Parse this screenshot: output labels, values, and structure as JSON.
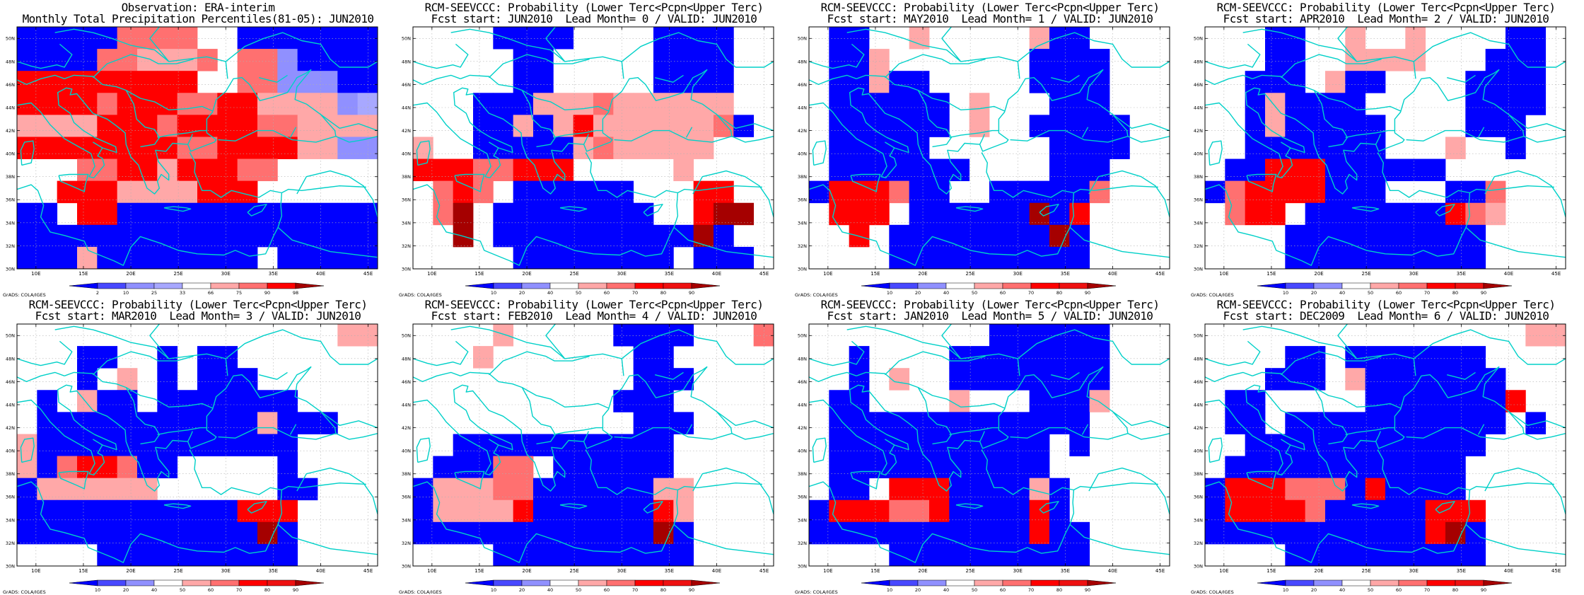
{
  "colors": {
    "blue": "#0000ff",
    "blue_light": "#4848ff",
    "blue_lighter": "#9090ff",
    "blue_pale": "#a8a8ff",
    "white": "#ffffff",
    "red_pale": "#ffa8a8",
    "red_light": "#ff7070",
    "red": "#ff0000",
    "red_mid": "#ee1111",
    "red_dark": "#a50000",
    "coast": "#00d0c8"
  },
  "map": {
    "lon_ticks": [
      "10E",
      "15E",
      "20E",
      "25E",
      "30E",
      "35E",
      "40E",
      "45E"
    ],
    "lat_ticks": [
      "50N",
      "48N",
      "46N",
      "44N",
      "42N",
      "40N",
      "38N",
      "36N",
      "34N",
      "32N",
      "30N"
    ],
    "lon_range": [
      8,
      46
    ],
    "lat_range": [
      30,
      51
    ],
    "grid_step_deg": 2
  },
  "credit": "GrADS: COLA/IGES",
  "panels": [
    {
      "id": "obs",
      "title1": "Observation: ERA-interim",
      "title2": "Monthly Total Precipitation Percentiles(81-05): JUN2010",
      "colorbar": {
        "labels": [
          "2",
          "10",
          "25",
          "33",
          "66",
          "75",
          "90",
          "98"
        ],
        "colors": [
          "#0000ff",
          "#4848ff",
          "#9090ff",
          "#a8a8ff",
          "#ffffff",
          "#ffa8a8",
          "#ff7070",
          "#ff0000",
          "#a50000"
        ]
      },
      "rows": [
        "BBBBBXXXXWWBBBBBBB",
        "BBBBXXPPPXWXXQBBBB",
        "RRRRRRRRRWWXXQQQBB",
        "RRRRXRRRXXRRPPPPQL",
        "PPPPRRRXRRRRXXPPPP",
        "RRRRRRRRXXRRRRPPQQ",
        "WWWXXRRPRRRXXWWWWW",
        "WWRRRPPPPRRRWWWWWW",
        "BBWRRBBBBBBBBBBBBB",
        "BBBBBBBBBBBBBBBBBB",
        "BBBPBBBBBBBBWBBBBB"
      ]
    },
    {
      "id": "lead0",
      "title1": "RCM-SEEVCCC: Probability (Lower Terc<Pcpn<Upper Terc)",
      "title2": "Fcst start: JUN2010  Lead Month= 0 / VALID: JUN2010",
      "colorbar": {
        "labels": [
          "10",
          "20",
          "40",
          "50",
          "60",
          "70",
          "80",
          "90"
        ],
        "colors": [
          "#0000ff",
          "#4848ff",
          "#9090ff",
          "#ffffff",
          "#ffa8a8",
          "#ff7070",
          "#ff0000",
          "#ee1111",
          "#a50000"
        ]
      },
      "rows": [
        "WWWWBBBBWWWWBBBBWW",
        "WWWWWBBWWWWWBBBBWW",
        "WWWWWBBWWWWWBBBBWW",
        "WWWBBBPPPXPPPPPPWW",
        "WWWBBPBPRPPPPPPXBW",
        "PWWBBBBBPXPPPPPWWW",
        "RRRXXRRRWWWWWPWWWW",
        "WXRXWBBBBBBWWWRRWW",
        "WXDWBBBBBBBBWWRDDW",
        "WWDWBBBBBBBBBBDBWW",
        "WWWWWBBBBBBBBWBBBW"
      ]
    },
    {
      "id": "lead1",
      "title1": "RCM-SEEVCCC: Probability (Lower Terc<Pcpn<Upper Terc)",
      "title2": "Fcst start: MAY2010  Lead Month= 1 / VALID: JUN2010",
      "colorbar": {
        "labels": [
          "10",
          "20",
          "40",
          "50",
          "60",
          "70",
          "80",
          "90"
        ],
        "colors": [
          "#0000ff",
          "#4848ff",
          "#9090ff",
          "#ffffff",
          "#ffa8a8",
          "#ff7070",
          "#ff0000",
          "#ee1111",
          "#a50000"
        ]
      },
      "rows": [
        "WBBWWPWWWWWPBBWWWW",
        "WBBPWWWWWWWBBBBWWW",
        "WBBPBBWWWWWBBBBWWW",
        "WBBBBBBWPWWWBBBWWW",
        "WBBBBBBWPWWBBBBBWW",
        "WBBBBBWWWWWWBBBBWW",
        "WBBBBBBBWWWWBBBWWW",
        "BRRRXBBWWBBBBBXWWW",
        "WRRRWBBBBBBDBRWWWW",
        "WWRWBBBBBBBBDBWWWW",
        "WWWWBBBBBBBBBBWWWW"
      ]
    },
    {
      "id": "lead2",
      "title1": "RCM-SEEVCCC: Probability (Lower Terc<Pcpn<Upper Terc)",
      "title2": "Fcst start: APR2010  Lead Month= 2 / VALID: JUN2010",
      "colorbar": {
        "labels": [
          "10",
          "20",
          "40",
          "50",
          "60",
          "70",
          "80",
          "90"
        ],
        "colors": [
          "#0000ff",
          "#4848ff",
          "#9090ff",
          "#ffffff",
          "#ffa8a8",
          "#ff7070",
          "#ff0000",
          "#ee1111",
          "#a50000"
        ]
      },
      "rows": [
        "WWWBBWWPWWPWWWWBBW",
        "WWWBBWWPPPPWWWBBBW",
        "WWBBBWPBBWWWWBBBBW",
        "WWBPBBBBWWWWWBBBBW",
        "WWBPBBBBBWWWWBBBWW",
        "WWBBBBBBBWWWPWWBWW",
        "WBBRRRBBBBBBWWWWWW",
        "BXRRRRBBBWWWBBXWWW",
        "WXRRWBBBBBBBRXPWWW",
        "WWWWBBBBBBBBBBWWWW",
        "WWWWBBBBBBBBBBWWWW"
      ]
    },
    {
      "id": "lead3",
      "title1": "RCM-SEEVCCC: Probability (Lower Terc<Pcpn<Upper Terc)",
      "title2": "Fcst start: MAR2010  Lead Month= 3 / VALID: JUN2010",
      "colorbar": {
        "labels": [
          "10",
          "20",
          "40",
          "50",
          "60",
          "70",
          "80",
          "90"
        ],
        "colors": [
          "#0000ff",
          "#4848ff",
          "#9090ff",
          "#ffffff",
          "#ffa8a8",
          "#ff7070",
          "#ff0000",
          "#ee1111",
          "#a50000"
        ]
      },
      "rows": [
        "WWWWWWWWWWWWWWWWPP",
        "WWWBBWWBWBBWWWWWWW",
        "WWWBWPWBWBBBWWWWWW",
        "WBWPBBWBBBBBBBWWWW",
        "WBBBBBBBBBBBPBBBWW",
        "PBBBBBBBBBBBBBWWWW",
        "PBXRRXBBWWWWWBWWWW",
        "BPPPPPPWWWWWWBBWWW",
        "BBBBBBBBBBBRRRWWWW",
        "BBBBBBBBBBBBDBWWWW",
        "WWWWBBBBBBBBBBWWWW"
      ]
    },
    {
      "id": "lead4",
      "title1": "RCM-SEEVCCC: Probability (Lower Terc<Pcpn<Upper Terc)",
      "title2": "Fcst start: FEB2010  Lead Month= 4 / VALID: JUN2010",
      "colorbar": {
        "labels": [
          "10",
          "20",
          "40",
          "50",
          "60",
          "70",
          "80",
          "90"
        ],
        "colors": [
          "#0000ff",
          "#4848ff",
          "#9090ff",
          "#ffffff",
          "#ffa8a8",
          "#ff7070",
          "#ff0000",
          "#ee1111",
          "#a50000"
        ]
      },
      "rows": [
        "WWWWPWWWWWBBBBWWWX",
        "WWWPWWWWWWWBBWWWWW",
        "WWWWWWWWWWWBBBWWWW",
        "WWWWWWWWWWBBBWWWWW",
        "WWWWWWWWWWWBBBWWWW",
        "WWBBBBBBBBBBBWWWWW",
        "WBBBXXWBBBBBBWWWWW",
        "BPPPXXBBBBBBPPWWWW",
        "BPPPPRBBBBBBRPWWWW",
        "BBBBBBBBBBBBDBWWWW",
        "WWWWBBBBBBBBBBWWWW"
      ]
    },
    {
      "id": "lead5",
      "title1": "RCM-SEEVCCC: Probability (Lower Terc<Pcpn<Upper Terc)",
      "title2": "Fcst start: JAN2010  Lead Month= 5 / VALID: JUN2010",
      "colorbar": {
        "labels": [
          "10",
          "20",
          "40",
          "50",
          "60",
          "70",
          "80",
          "90"
        ],
        "colors": [
          "#0000ff",
          "#4848ff",
          "#9090ff",
          "#ffffff",
          "#ffa8a8",
          "#ff7070",
          "#ff0000",
          "#ee1111",
          "#a50000"
        ]
      },
      "rows": [
        "WWWWWWWWWBBBBBBWWW",
        "WWBWWWWBBBBBBBBWWW",
        "WWBWPWWBBBBBBBBWWW",
        "WBBWWWWPWWWBBBPWWW",
        "WBBBBBBBBBBBBBWWWW",
        "WBBBBBBBBBBBWBWWWW",
        "WBBBBBBBBBBBWWWWWW",
        "WBBWRRRBBBBPBWWWWW",
        "BRRRXXRBBBBRBWWWWW",
        "BBBBBBBBBBBRBBWWWW",
        "WWWWBBBBBBBBBBWWWW"
      ]
    },
    {
      "id": "lead6",
      "title1": "RCM-SEEVCCC: Probability (Lower Terc<Pcpn<Upper Terc)",
      "title2": "Fcst start: DEC2009  Lead Month= 6 / VALID: JUN2010",
      "colorbar": {
        "labels": [
          "10",
          "20",
          "40",
          "50",
          "60",
          "70",
          "80",
          "90"
        ],
        "colors": [
          "#0000ff",
          "#4848ff",
          "#9090ff",
          "#ffffff",
          "#ffa8a8",
          "#ff7070",
          "#ff0000",
          "#ee1111",
          "#a50000"
        ]
      },
      "rows": [
        "WWWWWWWWWWWWWWWWPP",
        "WWWWBBWBBBBBBBWWWW",
        "WWWBBBWPBBBBBBBWWW",
        "WBBWWWWWBBBBBBBRWW",
        "WBBWBBBBBBBBBBBWBW",
        "WWBBBBBBBBBBBBWWWW",
        "WBBBBBBBBBBBBWWWWW",
        "BRRRXXXBRBBBBWWWWW",
        "BRRRRXBBBBBRRRWWWW",
        "BBBBBBBBBBBRDBWWWW",
        "WWWWBBBBBBBBBBWWWW"
      ]
    }
  ]
}
